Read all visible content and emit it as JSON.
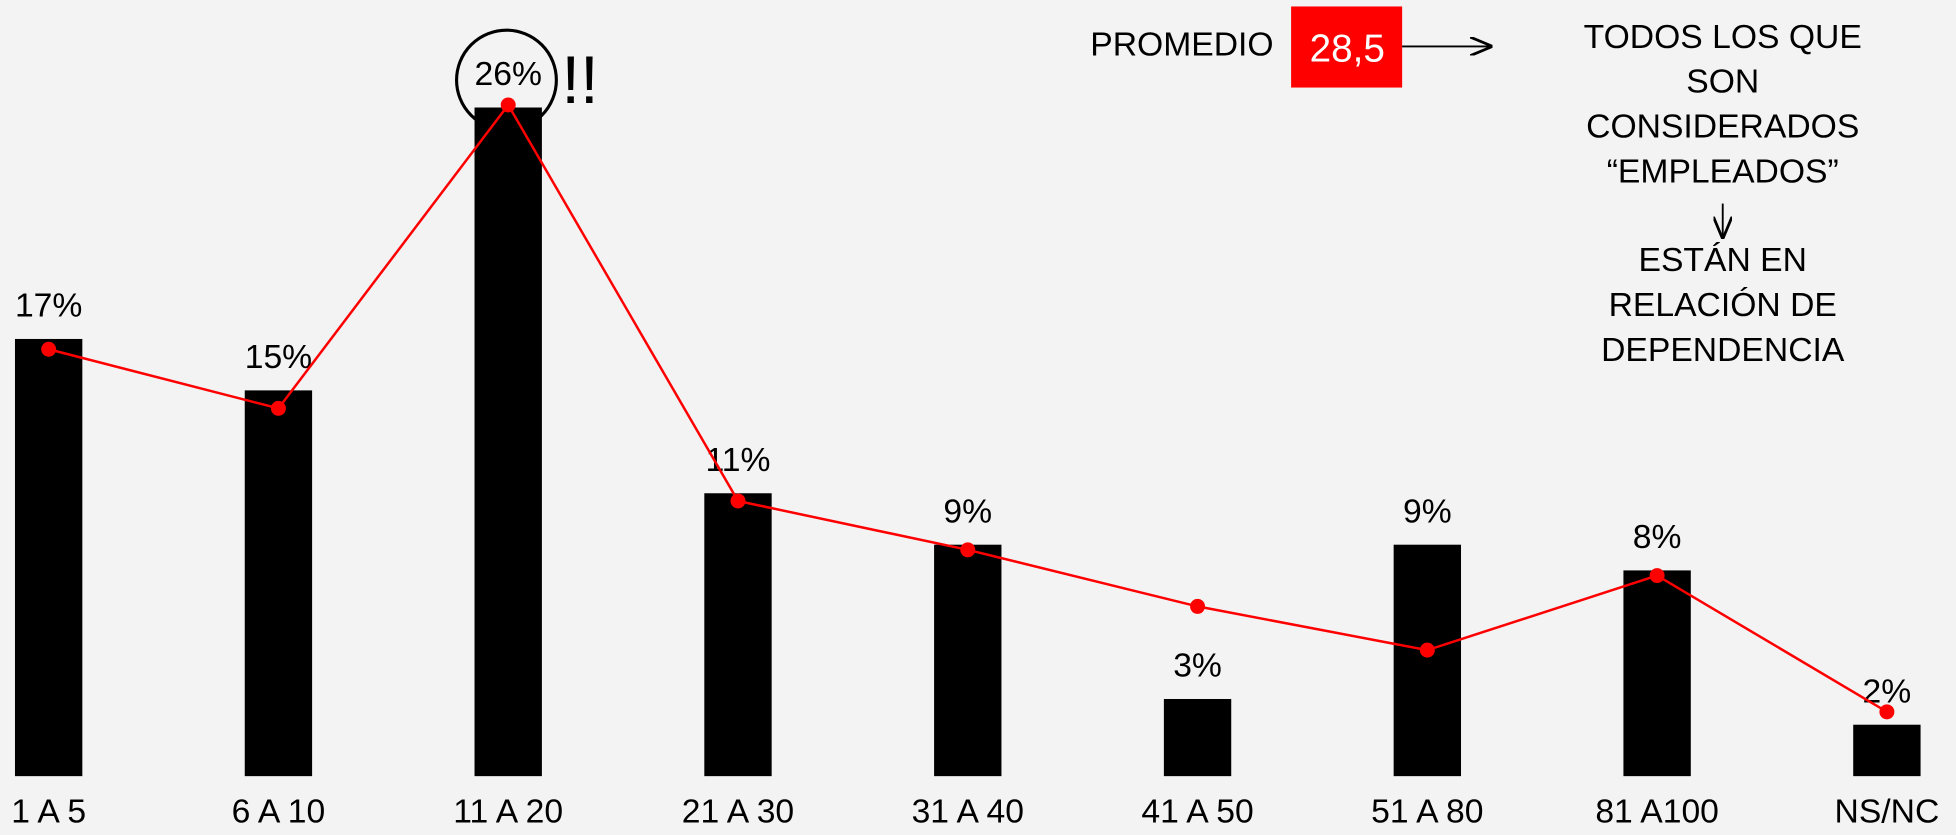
{
  "chart_data": {
    "type": "bar",
    "categories": [
      "1 A 5",
      "6  A 10",
      "11 A 20",
      "21 A 30",
      "31 A 40",
      "41 A 50",
      "51 A 80",
      "81 A100",
      "NS/NC"
    ],
    "series": [
      {
        "color": "#000000",
        "values": [
          17,
          15,
          26,
          11,
          9,
          3,
          9,
          8,
          2
        ],
        "value_labels": [
          "17%",
          "15%",
          "26%",
          "11%",
          "9%",
          "3%",
          "9%",
          "8%",
          "2%"
        ]
      },
      {
        "type": "line",
        "color": "#ff0000",
        "values": [
          16.6,
          14.3,
          26.1,
          10.7,
          8.8,
          6.6,
          4.9,
          7.8,
          2.5
        ]
      }
    ],
    "annotations": {
      "average_label": "PROMEDIO",
      "average_value": "28,5",
      "emphasis": "!!",
      "note_top": [
        "TODOS LOS QUE",
        "SON",
        "CONSIDERADOS",
        "“EMPLEADOS”"
      ],
      "note_bottom": [
        "ESTÁN EN",
        "RELACIÓN DE",
        "DEPENDENCIA"
      ]
    }
  }
}
